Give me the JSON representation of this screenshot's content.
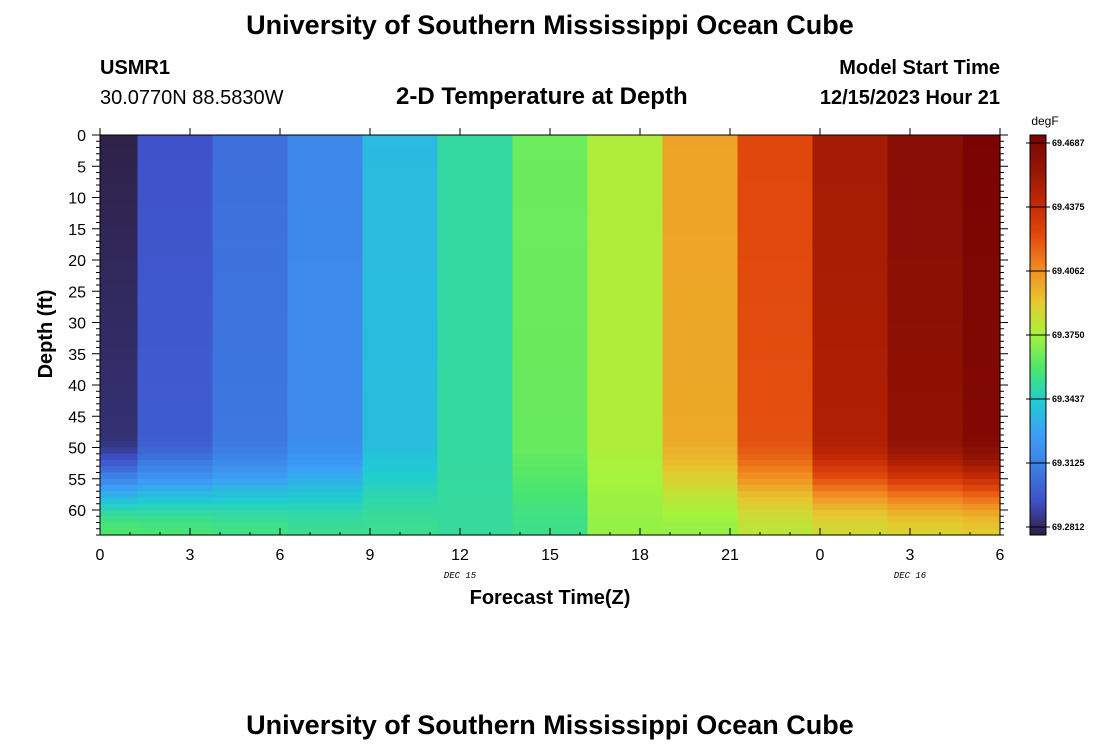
{
  "header": {
    "title": "University of Southern Mississippi Ocean Cube",
    "station": "USMR1",
    "coords": "30.0770N  88.5830W",
    "subtitle": "2-D Temperature at Depth",
    "model_start_label": "Model Start Time",
    "model_start_value": "12/15/2023 Hour 21"
  },
  "footer": {
    "title": "University of Southern Mississippi Ocean Cube"
  },
  "colors": {
    "palette": [
      "#2d1e3e",
      "#3f50c8",
      "#3d7de3",
      "#3c9ef7",
      "#1fcdd0",
      "#4be66e",
      "#a6f33c",
      "#e6c92f",
      "#f28a21",
      "#e1480d",
      "#c02704",
      "#941504",
      "#7a0403"
    ]
  },
  "chart_data": {
    "type": "heatmap",
    "title": "2-D Temperature at Depth",
    "xlabel": "Forecast Time(Z)",
    "ylabel": "Depth (ft)",
    "x_tick_labels": [
      "0",
      "3",
      "6",
      "9",
      "12",
      "15",
      "18",
      "21",
      "0",
      "3",
      "6"
    ],
    "x_tick_hours": [
      0,
      3,
      6,
      9,
      12,
      15,
      18,
      21,
      24,
      27,
      30
    ],
    "x_date_labels": [
      {
        "hour": 12,
        "text": "DEC 15"
      },
      {
        "hour": 27,
        "text": "DEC 16"
      }
    ],
    "xlim": [
      0,
      30
    ],
    "y_tick_labels": [
      "0",
      "5",
      "10",
      "15",
      "20",
      "25",
      "30",
      "35",
      "40",
      "45",
      "50",
      "55",
      "60"
    ],
    "y_ticks": [
      0,
      5,
      10,
      15,
      20,
      25,
      30,
      35,
      40,
      45,
      50,
      55,
      60
    ],
    "ylim": [
      0,
      64
    ],
    "y_inverted": true,
    "colorbar": {
      "unit": "degF",
      "tick_labels": [
        "69.4687",
        "69.4375",
        "69.4062",
        "69.3750",
        "69.3437",
        "69.3125",
        "69.2812"
      ],
      "range": [
        69.28125,
        69.46875
      ]
    },
    "time_bins_hours": [
      [
        0,
        1.25
      ],
      [
        1.25,
        3.75
      ],
      [
        3.75,
        6.25
      ],
      [
        6.25,
        8.75
      ],
      [
        8.75,
        11.25
      ],
      [
        11.25,
        13.75
      ],
      [
        13.75,
        16.25
      ],
      [
        16.25,
        18.75
      ],
      [
        18.75,
        21.25
      ],
      [
        21.25,
        23.75
      ],
      [
        23.75,
        26.25
      ],
      [
        26.25,
        28.75
      ],
      [
        28.75,
        30
      ]
    ],
    "surface_temps_degF": [
      69.2825,
      69.2975,
      69.3075,
      69.3175,
      69.3375,
      69.3512,
      69.365,
      69.3775,
      69.4,
      69.4225,
      69.4475,
      69.46,
      69.4685
    ],
    "bottom_temps_degF": [
      69.36,
      69.358,
      69.356,
      69.354,
      69.354,
      69.352,
      69.355,
      69.372,
      69.372,
      69.38,
      69.385,
      69.388,
      69.39
    ]
  }
}
